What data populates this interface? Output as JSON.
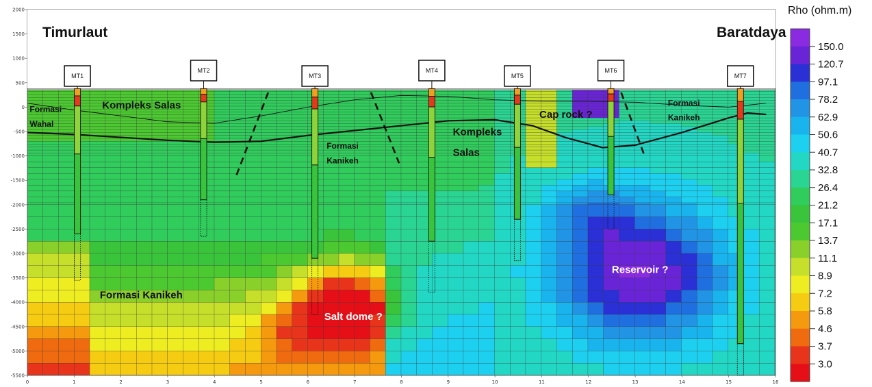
{
  "chart_data": {
    "type": "heatmap",
    "title_left": "Timurlaut",
    "title_right": "Baratdaya",
    "colorbar_title": "Rho (ohm.m)",
    "colorbar_labels": [
      "150.0",
      "120.7",
      "97.1",
      "78.2",
      "62.9",
      "50.6",
      "40.7",
      "32.8",
      "26.4",
      "21.2",
      "17.1",
      "13.7",
      "11.1",
      "8.9",
      "7.2",
      "5.8",
      "4.6",
      "3.7",
      "3.0"
    ],
    "colorbar_colors": [
      "#8a2be2",
      "#6a24d8",
      "#2a2fd6",
      "#1f6fe0",
      "#2294e6",
      "#19b3ee",
      "#1ed0f0",
      "#22d8c4",
      "#2ad492",
      "#30cc5c",
      "#39c43c",
      "#4cc931",
      "#8ad02b",
      "#c6df2a",
      "#eded21",
      "#f5cc12",
      "#f59a0f",
      "#f06a10",
      "#e8341a",
      "#e60f17"
    ],
    "xlim": [
      0,
      16
    ],
    "ylim": [
      -5500,
      2000
    ],
    "x_ticks": [
      "0",
      "1",
      "2",
      "3",
      "4",
      "5",
      "6",
      "7",
      "8",
      "9",
      "10",
      "11",
      "12",
      "13",
      "14",
      "15",
      "16"
    ],
    "y_ticks": [
      "2000",
      "1500",
      "1000",
      "500",
      "0",
      "-500",
      "-1000",
      "-1500",
      "-2000",
      "-2500",
      "-3000",
      "-3500",
      "-4000",
      "-4500",
      "-5000",
      "-5500"
    ],
    "stations": [
      {
        "name": "MT1",
        "x": 1.07,
        "log_bottom": -3550,
        "solid_bottom": -2600
      },
      {
        "name": "MT2",
        "x": 3.77,
        "log_bottom": -2650,
        "solid_bottom": -1900
      },
      {
        "name": "MT3",
        "x": 6.15,
        "log_bottom": -4250,
        "solid_bottom": -3100
      },
      {
        "name": "MT4",
        "x": 8.65,
        "log_bottom": -3800,
        "solid_bottom": -2750
      },
      {
        "name": "MT5",
        "x": 10.48,
        "log_bottom": -3150,
        "solid_bottom": -2300
      },
      {
        "name": "MT6",
        "x": 12.48,
        "log_bottom": -2500,
        "solid_bottom": -1800
      },
      {
        "name": "MT7",
        "x": 15.25,
        "log_bottom": -5500,
        "solid_bottom": -4850
      }
    ],
    "annotations": [
      {
        "text": "Formasi",
        "x": 0.05,
        "y": -100,
        "size": 12
      },
      {
        "text": "Wahal",
        "x": 0.05,
        "y": -400,
        "size": 12
      },
      {
        "text": "Kompleks Salas",
        "x": 1.6,
        "y": -30,
        "size": 15
      },
      {
        "text": "Formasi",
        "x": 6.4,
        "y": -850,
        "size": 12
      },
      {
        "text": "Kanikeh",
        "x": 6.4,
        "y": -1150,
        "size": 12
      },
      {
        "text": "Kompleks",
        "x": 9.1,
        "y": -580,
        "size": 15
      },
      {
        "text": "Salas",
        "x": 9.1,
        "y": -1000,
        "size": 15
      },
      {
        "text": "Cap rock ?",
        "x": 10.95,
        "y": -220,
        "size": 15
      },
      {
        "text": "Formasi",
        "x": 13.7,
        "y": 30,
        "size": 12
      },
      {
        "text": "Kanikeh",
        "x": 13.7,
        "y": -270,
        "size": 12
      },
      {
        "text": "Formasi Kanikeh",
        "x": 1.55,
        "y": -3920,
        "size": 15
      },
      {
        "text": "Salt dome ?",
        "x": 6.35,
        "y": -4360,
        "size": 15,
        "white": true
      },
      {
        "text": "Reservoir  ?",
        "x": 12.5,
        "y": -3400,
        "size": 15,
        "white": true
      }
    ]
  }
}
